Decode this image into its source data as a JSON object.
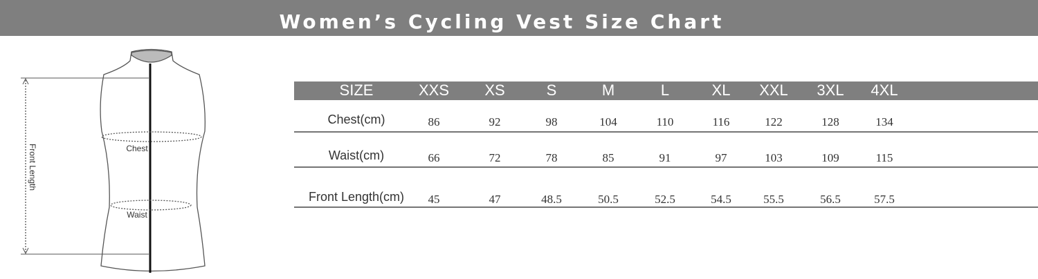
{
  "header": {
    "title": "Women’s Cycling Vest Size Chart"
  },
  "diagram": {
    "front_length": "Front Length",
    "chest": "Chest",
    "waist": "Waist"
  },
  "table": {
    "header": [
      "SIZE",
      "XXS",
      "XS",
      "S",
      "M",
      "L",
      "XL",
      "XXL",
      "3XL",
      "4XL"
    ],
    "rows": [
      [
        "Chest(cm)",
        "86",
        "92",
        "98",
        "104",
        "110",
        "116",
        "122",
        "128",
        "134"
      ],
      [
        "Waist(cm)",
        "66",
        "72",
        "78",
        "85",
        "91",
        "97",
        "103",
        "109",
        "115"
      ],
      [
        "Front Length(cm)",
        "45",
        "47",
        "48.5",
        "50.5",
        "52.5",
        "54.5",
        "55.5",
        "56.5",
        "57.5"
      ]
    ]
  }
}
